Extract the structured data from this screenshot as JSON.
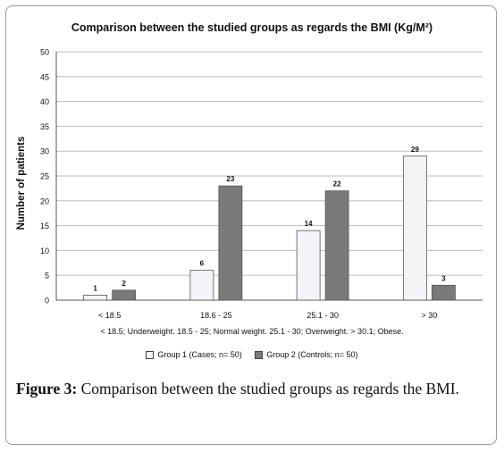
{
  "chart_data": {
    "type": "bar",
    "title": "Comparison between the studied groups as regards the BMI (Kg/M²)",
    "ylabel": "Number of patients",
    "xlabel": "",
    "categories": [
      "< 18.5",
      "18.6 - 25",
      "25.1 - 30",
      "> 30"
    ],
    "series": [
      {
        "name": "Group 1 (Cases; n= 50)",
        "values": [
          1,
          6,
          14,
          29
        ],
        "color": "#f3f4f7"
      },
      {
        "name": "Group 2 (Controls; n= 50)",
        "values": [
          2,
          23,
          22,
          3
        ],
        "color": "#7a7a7a"
      }
    ],
    "ylim": [
      0,
      50
    ],
    "yticks": [
      0,
      5,
      10,
      15,
      20,
      25,
      30,
      35,
      40,
      45,
      50
    ],
    "grid": true,
    "legend_position": "bottom",
    "note": "< 18.5; Underweight. 18.5 - 25; Normal weight. 25.1 - 30; Overweight. > 30.1; Obese."
  },
  "caption": {
    "label": "Figure 3:",
    "text": " Comparison between the studied groups as regards the BMI."
  }
}
